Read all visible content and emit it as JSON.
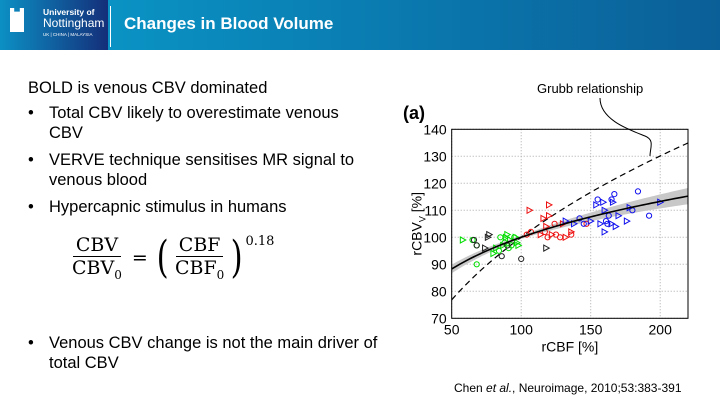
{
  "header": {
    "university_line1": "University of",
    "university_line2": "Nottingham",
    "university_line3": "UK | CHINA | MALAYSIA",
    "title": "Changes in Blood Volume"
  },
  "body": {
    "heading": "BOLD is venous CBV dominated",
    "bullets": [
      "Total CBV likely to overestimate venous CBV",
      "VERVE technique sensitises MR signal to venous blood",
      "Hypercapnic stimulus in humans"
    ],
    "equation": {
      "lhs_num": "CBV",
      "lhs_den": "CBV",
      "lhs_den_sub": "0",
      "rhs_num": "CBF",
      "rhs_den": "CBF",
      "rhs_den_sub": "0",
      "exponent": "0.18"
    },
    "final_bullet": "Venous CBV change is not the main driver of total CBV",
    "bullet_char": "•"
  },
  "citation": {
    "author": "Chen ",
    "etal": "et al.",
    "rest": ", Neuroimage, 2010;53:383-391"
  },
  "chart_data": {
    "type": "scatter",
    "panel_label": "(a)",
    "annotation": "Grubb relationship",
    "xlabel": "rCBF [%]",
    "ylabel": "rCBV",
    "ylabel_sub": "V",
    "ylabel_unit": " [%]",
    "xlim": [
      50,
      220
    ],
    "ylim": [
      70,
      140
    ],
    "xticks": [
      50,
      100,
      150,
      200
    ],
    "yticks": [
      70,
      80,
      90,
      100,
      110,
      120,
      130,
      140
    ],
    "grid": true,
    "fit_exponent": 0.18,
    "grubb_exponent": 0.38,
    "series": [
      {
        "name": "green",
        "color": "#00dd00",
        "points": [
          [
            58,
            99,
            "t"
          ],
          [
            65,
            99,
            "c"
          ],
          [
            68,
            90,
            "c"
          ],
          [
            68,
            97,
            "c"
          ],
          [
            80,
            94,
            "t"
          ],
          [
            82,
            96,
            "t"
          ],
          [
            85,
            100,
            "c"
          ],
          [
            88,
            98,
            "c"
          ],
          [
            90,
            101,
            "t"
          ],
          [
            92,
            99,
            "t"
          ],
          [
            95,
            100,
            "c"
          ],
          [
            97,
            98,
            "t"
          ],
          [
            87,
            97,
            "t"
          ],
          [
            93,
            97,
            "c"
          ],
          [
            96,
            100,
            "t"
          ],
          [
            84,
            95,
            "c"
          ],
          [
            89,
            100,
            "t"
          ],
          [
            91,
            96,
            "c"
          ],
          [
            98,
            97,
            "t"
          ]
        ]
      },
      {
        "name": "black",
        "color": "#222222",
        "points": [
          [
            66,
            99,
            "c"
          ],
          [
            68,
            97,
            "c"
          ],
          [
            76,
            100,
            "t"
          ],
          [
            77,
            101,
            "t"
          ],
          [
            74,
            96,
            "t"
          ],
          [
            86,
            93,
            "c"
          ],
          [
            90,
            97,
            "c"
          ],
          [
            100,
            92,
            "c"
          ],
          [
            118,
            96,
            "t"
          ]
        ]
      },
      {
        "name": "red",
        "color": "#ee1111",
        "points": [
          [
            104,
            101,
            "c"
          ],
          [
            107,
            102,
            "c"
          ],
          [
            106,
            110,
            "t"
          ],
          [
            116,
            107,
            "t"
          ],
          [
            118,
            104,
            "t"
          ],
          [
            120,
            112,
            "t"
          ],
          [
            120,
            108,
            "t"
          ],
          [
            117,
            102,
            "c"
          ],
          [
            122,
            101,
            "t"
          ],
          [
            124,
            105,
            "c"
          ],
          [
            125,
            101,
            "c"
          ],
          [
            128,
            100,
            "c"
          ],
          [
            130,
            105,
            "t"
          ],
          [
            132,
            100,
            "t"
          ],
          [
            136,
            102,
            "t"
          ],
          [
            136,
            101,
            "c"
          ],
          [
            147,
            105,
            "c"
          ],
          [
            114,
            101,
            "t"
          ],
          [
            119,
            100,
            "c"
          ]
        ]
      },
      {
        "name": "blue",
        "color": "#1111ee",
        "points": [
          [
            132,
            106,
            "t"
          ],
          [
            138,
            105,
            "t"
          ],
          [
            142,
            107,
            "c"
          ],
          [
            145,
            105,
            "c"
          ],
          [
            150,
            106,
            "t"
          ],
          [
            154,
            112,
            "t"
          ],
          [
            155,
            114,
            "c"
          ],
          [
            157,
            105,
            "t"
          ],
          [
            159,
            113,
            "t"
          ],
          [
            160,
            110,
            "t"
          ],
          [
            161,
            106,
            "c"
          ],
          [
            163,
            108,
            "c"
          ],
          [
            165,
            114,
            "c"
          ],
          [
            167,
            116,
            "c"
          ],
          [
            166,
            113,
            "t"
          ],
          [
            165,
            105,
            "t"
          ],
          [
            168,
            104,
            "t"
          ],
          [
            170,
            108,
            "t"
          ],
          [
            176,
            106,
            "t"
          ],
          [
            178,
            111,
            "t"
          ],
          [
            180,
            110,
            "c"
          ],
          [
            184,
            117,
            "c"
          ],
          [
            192,
            108,
            "c"
          ],
          [
            200,
            113,
            "t"
          ],
          [
            160,
            102,
            "t"
          ],
          [
            162,
            105,
            "c"
          ]
        ]
      }
    ]
  }
}
